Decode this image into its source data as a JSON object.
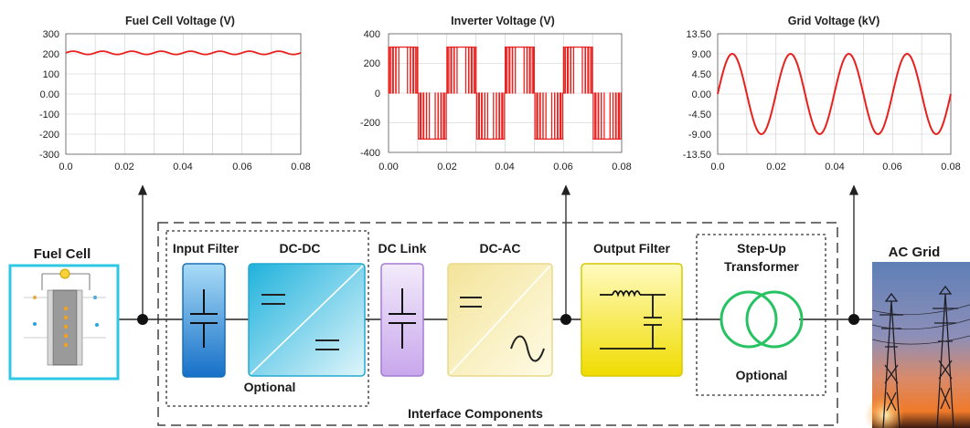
{
  "charts": {
    "fuel_cell": {
      "title": "Fuel Cell Voltage (V)",
      "y_ticks": [
        "300",
        "200",
        "100",
        "0.00",
        "-100",
        "-200",
        "-300"
      ],
      "x_ticks": [
        "0.0",
        "0.02",
        "0.04",
        "0.06",
        "0.08"
      ]
    },
    "inverter": {
      "title": "Inverter Voltage (V)",
      "y_ticks": [
        "400",
        "200",
        "0",
        "-200",
        "-400"
      ],
      "x_ticks": [
        "0.00",
        "0.02",
        "0.04",
        "0.06",
        "0.08"
      ]
    },
    "grid": {
      "title": "Grid Voltage (kV)",
      "y_ticks": [
        "13.50",
        "9.00",
        "4.50",
        "0.00",
        "-4.50",
        "-9.00",
        "-13.50"
      ],
      "x_ticks": [
        "0.0",
        "0.02",
        "0.04",
        "0.06",
        "0.08"
      ]
    }
  },
  "chart_data": [
    {
      "type": "line",
      "title": "Fuel Cell Voltage (V)",
      "xlim": [
        0,
        0.08
      ],
      "ylim": [
        -300,
        300
      ],
      "series": [
        {
          "dc_level": 205,
          "ripple_amplitude": 8,
          "ripple_frequency_hz": 100
        }
      ],
      "color": "#e8201e",
      "grid": true
    },
    {
      "type": "line",
      "title": "Inverter Voltage (V)",
      "xlim": [
        0,
        0.08
      ],
      "ylim": [
        -400,
        400
      ],
      "series": [
        {
          "pulse_amplitude": 310,
          "fundamental_frequency_hz": 50,
          "waveform": "pwm"
        }
      ],
      "color": "#e8201e",
      "grid": true
    },
    {
      "type": "line",
      "title": "Grid Voltage (kV)",
      "xlim": [
        0,
        0.08
      ],
      "ylim": [
        -13.5,
        13.5
      ],
      "series": [
        {
          "amplitude": 9,
          "frequency_hz": 50
        }
      ],
      "color": "#e8201e",
      "grid": true
    }
  ],
  "diagram": {
    "fuel_cell_label": "Fuel Cell",
    "input_filter_label": "Input Filter",
    "dcdc_label": "DC-DC",
    "optional_left": "Optional",
    "dc_link_label": "DC Link",
    "dcac_label": "DC-AC",
    "output_filter_label": "Output Filter",
    "stepup_label_1": "Step-Up",
    "stepup_label_2": "Transformer",
    "optional_right": "Optional",
    "interface_label": "Interface Components",
    "ac_grid_label": "AC Grid"
  },
  "colors": {
    "wave": "#e8201e",
    "fuel_cell_border": "#2ec7e6",
    "input_filter": "#1e88d6",
    "dcdc": "#2bbfe0",
    "dc_link": "#b78de0",
    "dcac": "#f6ecaa",
    "output_filter": "#f2e500",
    "transformer": "#27c262"
  }
}
